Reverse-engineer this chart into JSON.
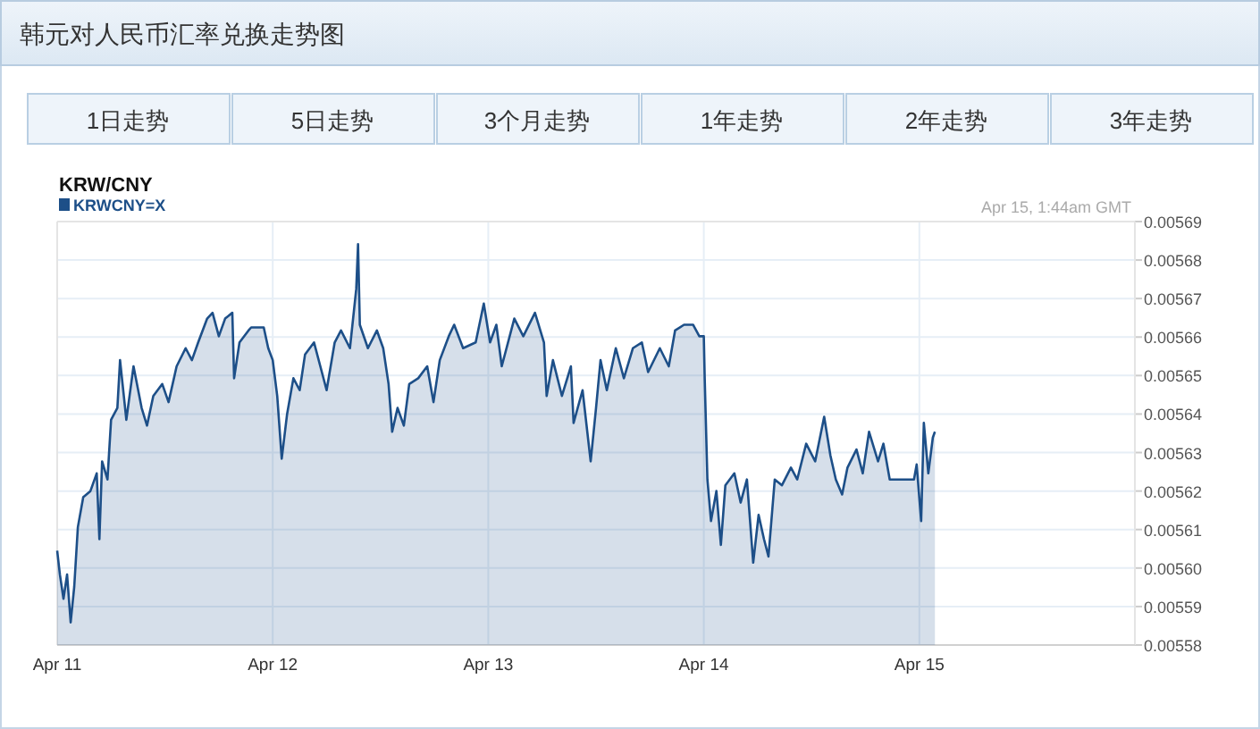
{
  "chart_data": {
    "type": "area",
    "title": "韩元对人民币汇率兑换走势图",
    "subtitle": "KRW/CNY",
    "annotations": [
      "1日走势",
      "5日走势",
      "3个月走势",
      "1年走势",
      "2年走势",
      "3年走势",
      "Apr 15, 1:44am GMT"
    ],
    "legend": "top left",
    "grid": true,
    "xlim": [
      "--04-11",
      "--04-16"
    ],
    "xticks": [
      {
        "value": "--04-11",
        "label": "Apr 11"
      },
      {
        "value": "--04-12",
        "label": "Apr 12"
      },
      {
        "value": "--04-13",
        "label": "Apr 13"
      },
      {
        "value": "--04-14",
        "label": "Apr 14"
      },
      {
        "value": "--04-15",
        "label": "Apr 15"
      }
    ],
    "ylim": [
      0.00558,
      0.00569
    ],
    "yticks": [
      0.00558,
      0.00559,
      {
        "value": 0.0056,
        "label": "0.00560"
      },
      0.00561,
      0.00562,
      0.00563,
      0.00564,
      0.00565,
      0.00566,
      0.00567,
      0.00568,
      0.00569
    ],
    "x": [
      "--04-11T00:00",
      "--04-11T00:18",
      "--04-11T00:42",
      "--04-11T01:06",
      "--04-11T01:30",
      "--04-11T01:54",
      "--04-11T02:18",
      "--04-11T02:54",
      "--04-11T03:42",
      "--04-11T04:24",
      "--04-11T04:42",
      "--04-11T05:00",
      "--04-11T05:36",
      "--04-11T06:00",
      "--04-11T06:42",
      "--04-11T07:00",
      "--04-11T07:42",
      "--04-11T08:30",
      "--04-11T09:24",
      "--04-11T10:00",
      "--04-11T10:42",
      "--04-11T11:42",
      "--04-11T12:24",
      "--04-11T13:18",
      "--04-11T14:18",
      "--04-11T15:00",
      "--04-11T15:42",
      "--04-11T16:42",
      "--04-11T17:18",
      "--04-11T18:00",
      "--04-11T18:42",
      "--04-11T19:30",
      "--04-11T19:42",
      "--04-11T20:18",
      "--04-11T21:18",
      "--04-11T21:36",
      "--04-11T23:00",
      "--04-11T23:30",
      "--04-12T00:00",
      "--04-12T00:30",
      "--04-12T01:00",
      "--04-12T01:36",
      "--04-12T02:18",
      "--04-12T03:00",
      "--04-12T03:36",
      "--04-12T04:36",
      "--04-12T05:18",
      "--04-12T06:00",
      "--04-12T06:54",
      "--04-12T07:36",
      "--04-12T08:36",
      "--04-12T09:18",
      "--04-12T09:30",
      "--04-12T09:42",
      "--04-12T10:36",
      "--04-12T11:36",
      "--04-12T12:18",
      "--04-12T12:54",
      "--04-12T13:18",
      "--04-12T13:54",
      "--04-12T14:36",
      "--04-12T15:12",
      "--04-12T16:12",
      "--04-12T17:12",
      "--04-12T17:54",
      "--04-12T18:36",
      "--04-12T19:36",
      "--04-12T20:12",
      "--04-12T21:12",
      "--04-12T22:36",
      "--04-12T23:30",
      "--04-13T00:12",
      "--04-13T00:54",
      "--04-13T01:30",
      "--04-13T02:54",
      "--04-13T03:54",
      "--04-13T05:12",
      "--04-13T06:12",
      "--04-13T06:30",
      "--04-13T07:12",
      "--04-13T08:12",
      "--04-13T09:12",
      "--04-13T09:30",
      "--04-13T10:30",
      "--04-13T11:24",
      "--04-13T12:00",
      "--04-13T12:30",
      "--04-13T13:12",
      "--04-13T14:12",
      "--04-13T15:06",
      "--04-13T16:06",
      "--04-13T17:06",
      "--04-13T17:48",
      "--04-13T19:06",
      "--04-13T20:06",
      "--04-13T20:48",
      "--04-13T21:48",
      "--04-13T22:48",
      "--04-13T23:30",
      "--04-14T00:00",
      "--04-14T00:06",
      "--04-14T00:24",
      "--04-14T00:48",
      "--04-14T01:24",
      "--04-14T01:54",
      "--04-14T02:24",
      "--04-14T03:24",
      "--04-14T04:06",
      "--04-14T04:48",
      "--04-14T05:30",
      "--04-14T06:06",
      "--04-14T06:42",
      "--04-14T07:12",
      "--04-14T07:54",
      "--04-14T08:42",
      "--04-14T09:42",
      "--04-14T10:24",
      "--04-14T11:24",
      "--04-14T12:24",
      "--04-14T13:24",
      "--04-14T14:06",
      "--04-14T14:42",
      "--04-14T15:24",
      "--04-14T16:00",
      "--04-14T17:00",
      "--04-14T17:42",
      "--04-14T18:24",
      "--04-14T19:24",
      "--04-14T20:00",
      "--04-14T20:42",
      "--04-14T21:42",
      "--04-14T23:24",
      "--04-14T23:42",
      "--04-15T00:12",
      "--04-15T00:30",
      "--04-15T01:00",
      "--04-15T01:30",
      "--04-15T01:44"
    ],
    "series": [
      {
        "name": "KRWCNY=X",
        "color": "#1d4f88",
        "values": [
          0.0056045,
          0.0055983,
          0.005592,
          0.0055983,
          0.0055859,
          0.0055952,
          0.0056106,
          0.0056184,
          0.00562,
          0.0056246,
          0.0056075,
          0.0056277,
          0.005623,
          0.0056385,
          0.0056416,
          0.005654,
          0.0056385,
          0.0056524,
          0.0056416,
          0.005637,
          0.0056447,
          0.0056478,
          0.0056431,
          0.0056524,
          0.0056571,
          0.005654,
          0.0056586,
          0.0056648,
          0.0056663,
          0.0056602,
          0.0056648,
          0.0056663,
          0.0056493,
          0.0056586,
          0.0056617,
          0.0056625,
          0.0056625,
          0.0056571,
          0.005654,
          0.0056447,
          0.0056284,
          0.00564,
          0.0056493,
          0.0056462,
          0.0056555,
          0.0056586,
          0.0056524,
          0.0056462,
          0.0056586,
          0.0056617,
          0.0056571,
          0.0056725,
          0.0056841,
          0.0056632,
          0.0056571,
          0.0056617,
          0.0056571,
          0.0056478,
          0.0056354,
          0.0056416,
          0.005637,
          0.0056478,
          0.0056493,
          0.0056524,
          0.0056431,
          0.005654,
          0.0056602,
          0.0056632,
          0.0056571,
          0.0056586,
          0.0056687,
          0.0056586,
          0.0056632,
          0.0056524,
          0.0056648,
          0.0056602,
          0.0056663,
          0.0056586,
          0.0056447,
          0.005654,
          0.0056447,
          0.0056524,
          0.0056377,
          0.0056462,
          0.0056277,
          0.0056416,
          0.005654,
          0.0056462,
          0.0056571,
          0.0056493,
          0.0056571,
          0.0056586,
          0.0056509,
          0.0056571,
          0.0056524,
          0.0056617,
          0.0056632,
          0.0056632,
          0.0056602,
          0.0056602,
          0.0056493,
          0.005623,
          0.0056122,
          0.00562,
          0.005606,
          0.0056215,
          0.0056246,
          0.005617,
          0.005623,
          0.0056014,
          0.0056138,
          0.0056075,
          0.005603,
          0.005623,
          0.0056215,
          0.0056261,
          0.005623,
          0.0056323,
          0.0056277,
          0.0056393,
          0.0056292,
          0.005623,
          0.0056191,
          0.0056261,
          0.0056308,
          0.0056246,
          0.0056354,
          0.0056277,
          0.0056323,
          0.005623,
          0.005623,
          0.005623,
          0.0056269,
          0.0056122,
          0.0056377,
          0.0056246,
          0.0056339,
          0.0056354
        ]
      }
    ]
  }
}
